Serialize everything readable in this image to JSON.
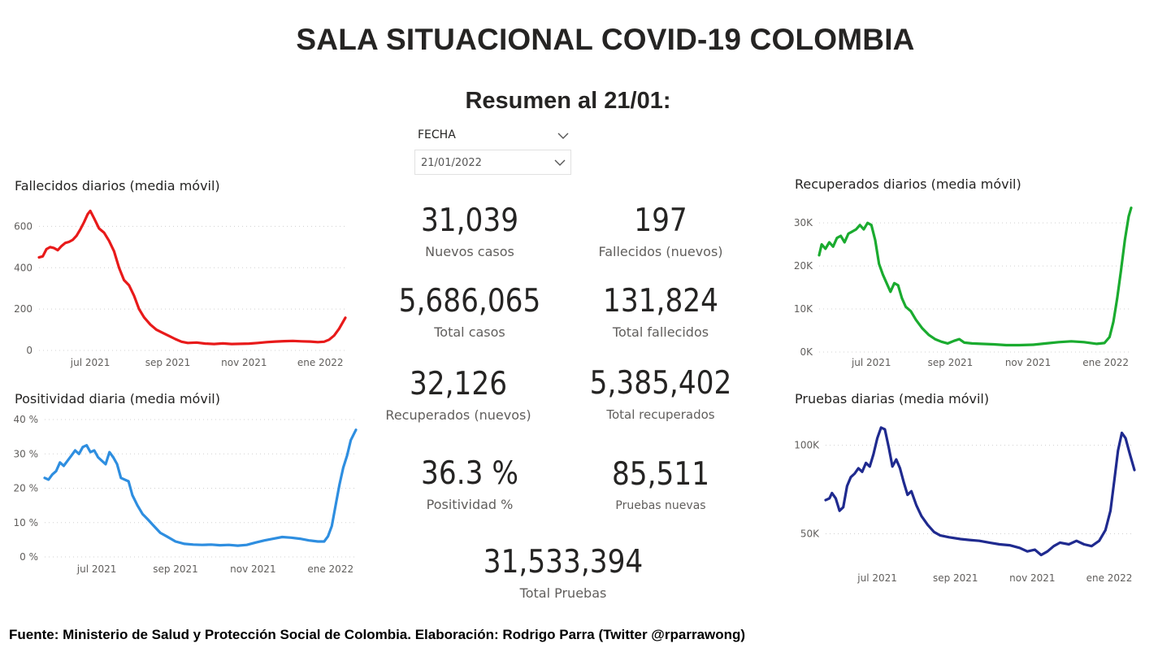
{
  "header": {
    "title": "SALA SITUACIONAL COVID-19 COLOMBIA",
    "subtitle": "Resumen al 21/01:"
  },
  "slicer": {
    "label": "FECHA",
    "value": "21/01/2022"
  },
  "kpis": {
    "nuevos_casos": {
      "value": "31,039",
      "label": "Nuevos casos"
    },
    "fallecidos_nuevos": {
      "value": "197",
      "label": "Fallecidos (nuevos)"
    },
    "total_casos": {
      "value": "5,686,065",
      "label": "Total casos"
    },
    "total_fallecidos": {
      "value": "131,824",
      "label": "Total fallecidos"
    },
    "recuperados_nuevos": {
      "value": "32,126",
      "label": "Recuperados (nuevos)"
    },
    "total_recuperados": {
      "value": "5,385,402",
      "label": "Total recuperados"
    },
    "positividad": {
      "value": "36.3 %",
      "label": "Positividad %"
    },
    "pruebas_nuevas": {
      "value": "85,511",
      "label": "Pruebas nuevas"
    },
    "total_pruebas": {
      "value": "31,533,394",
      "label": "Total Pruebas"
    }
  },
  "footer": "Fuente: Ministerio de Salud y Protección Social de Colombia. Elaboración: Rodrigo Parra (Twitter @rparrawong)",
  "colors": {
    "fallecidos": "#e81a1a",
    "positividad": "#2e8ee0",
    "recuperados": "#1aab2f",
    "pruebas": "#1f2a8f",
    "grid": "#d0d0d0",
    "axis_text": "#605e5c"
  },
  "chart_data": [
    {
      "id": "fallecidos",
      "type": "line",
      "title": "Fallecidos diarios (media móvil)",
      "x_range": [
        "2021-05-21",
        "2022-01-21"
      ],
      "x_ticks": [
        {
          "label": "jul 2021",
          "date": "2021-07-01"
        },
        {
          "label": "sep 2021",
          "date": "2021-09-01"
        },
        {
          "label": "nov 2021",
          "date": "2021-11-01"
        },
        {
          "label": "ene 2022",
          "date": "2022-01-01"
        }
      ],
      "y_ticks": [
        {
          "value": 0,
          "label": "0"
        },
        {
          "value": 200,
          "label": "200"
        },
        {
          "value": 400,
          "label": "400"
        },
        {
          "value": 600,
          "label": "600"
        }
      ],
      "ylim": [
        0,
        700
      ],
      "grid": true,
      "color": "#e81a1a",
      "points": [
        [
          "2021-05-21",
          450
        ],
        [
          "2021-05-24",
          455
        ],
        [
          "2021-05-27",
          490
        ],
        [
          "2021-05-30",
          500
        ],
        [
          "2021-06-02",
          495
        ],
        [
          "2021-06-05",
          485
        ],
        [
          "2021-06-08",
          505
        ],
        [
          "2021-06-11",
          520
        ],
        [
          "2021-06-14",
          525
        ],
        [
          "2021-06-17",
          535
        ],
        [
          "2021-06-20",
          555
        ],
        [
          "2021-06-23",
          585
        ],
        [
          "2021-06-26",
          620
        ],
        [
          "2021-06-29",
          660
        ],
        [
          "2021-07-01",
          675
        ],
        [
          "2021-07-04",
          640
        ],
        [
          "2021-07-08",
          590
        ],
        [
          "2021-07-12",
          570
        ],
        [
          "2021-07-16",
          530
        ],
        [
          "2021-07-20",
          480
        ],
        [
          "2021-07-24",
          400
        ],
        [
          "2021-07-28",
          340
        ],
        [
          "2021-08-01",
          315
        ],
        [
          "2021-08-05",
          265
        ],
        [
          "2021-08-09",
          200
        ],
        [
          "2021-08-13",
          160
        ],
        [
          "2021-08-18",
          125
        ],
        [
          "2021-08-23",
          100
        ],
        [
          "2021-08-28",
          85
        ],
        [
          "2021-09-02",
          70
        ],
        [
          "2021-09-07",
          55
        ],
        [
          "2021-09-12",
          42
        ],
        [
          "2021-09-17",
          36
        ],
        [
          "2021-09-24",
          38
        ],
        [
          "2021-10-01",
          33
        ],
        [
          "2021-10-08",
          31
        ],
        [
          "2021-10-15",
          34
        ],
        [
          "2021-10-22",
          31
        ],
        [
          "2021-10-29",
          32
        ],
        [
          "2021-11-05",
          33
        ],
        [
          "2021-11-12",
          36
        ],
        [
          "2021-11-19",
          40
        ],
        [
          "2021-11-26",
          43
        ],
        [
          "2021-12-03",
          45
        ],
        [
          "2021-12-10",
          46
        ],
        [
          "2021-12-17",
          44
        ],
        [
          "2021-12-24",
          43
        ],
        [
          "2021-12-30",
          40
        ],
        [
          "2022-01-04",
          42
        ],
        [
          "2022-01-08",
          52
        ],
        [
          "2022-01-12",
          72
        ],
        [
          "2022-01-16",
          105
        ],
        [
          "2022-01-21",
          158
        ]
      ]
    },
    {
      "id": "positividad",
      "type": "line",
      "title": "Positividad diaria (media móvil)",
      "x_range": [
        "2021-05-21",
        "2022-01-21"
      ],
      "x_ticks": [
        {
          "label": "jul 2021",
          "date": "2021-07-01"
        },
        {
          "label": "sep 2021",
          "date": "2021-09-01"
        },
        {
          "label": "nov 2021",
          "date": "2021-11-01"
        },
        {
          "label": "ene 2022",
          "date": "2022-01-01"
        }
      ],
      "y_ticks": [
        {
          "value": 0,
          "label": "0 %"
        },
        {
          "value": 10,
          "label": "10 %"
        },
        {
          "value": 20,
          "label": "20 %"
        },
        {
          "value": 30,
          "label": "30 %"
        },
        {
          "value": 40,
          "label": "40 %"
        }
      ],
      "ylim": [
        0,
        40
      ],
      "grid": true,
      "color": "#2e8ee0",
      "points": [
        [
          "2021-05-21",
          23
        ],
        [
          "2021-05-24",
          22.5
        ],
        [
          "2021-05-27",
          24
        ],
        [
          "2021-05-30",
          25
        ],
        [
          "2021-06-02",
          27.5
        ],
        [
          "2021-06-05",
          26.5
        ],
        [
          "2021-06-08",
          28
        ],
        [
          "2021-06-11",
          29.5
        ],
        [
          "2021-06-14",
          31
        ],
        [
          "2021-06-17",
          30
        ],
        [
          "2021-06-20",
          32
        ],
        [
          "2021-06-23",
          32.5
        ],
        [
          "2021-06-26",
          30.5
        ],
        [
          "2021-06-29",
          31
        ],
        [
          "2021-07-02",
          29
        ],
        [
          "2021-07-05",
          28
        ],
        [
          "2021-07-08",
          27
        ],
        [
          "2021-07-11",
          30.5
        ],
        [
          "2021-07-14",
          29
        ],
        [
          "2021-07-17",
          27
        ],
        [
          "2021-07-20",
          23
        ],
        [
          "2021-07-23",
          22.5
        ],
        [
          "2021-07-26",
          22
        ],
        [
          "2021-07-29",
          18
        ],
        [
          "2021-08-02",
          15
        ],
        [
          "2021-08-06",
          12.5
        ],
        [
          "2021-08-10",
          11
        ],
        [
          "2021-08-15",
          9
        ],
        [
          "2021-08-20",
          7
        ],
        [
          "2021-08-25",
          6
        ],
        [
          "2021-09-01",
          4.5
        ],
        [
          "2021-09-08",
          3.8
        ],
        [
          "2021-09-15",
          3.6
        ],
        [
          "2021-09-22",
          3.5
        ],
        [
          "2021-09-29",
          3.6
        ],
        [
          "2021-10-06",
          3.4
        ],
        [
          "2021-10-13",
          3.5
        ],
        [
          "2021-10-20",
          3.3
        ],
        [
          "2021-10-27",
          3.5
        ],
        [
          "2021-11-03",
          4.2
        ],
        [
          "2021-11-10",
          4.8
        ],
        [
          "2021-11-17",
          5.3
        ],
        [
          "2021-11-24",
          5.8
        ],
        [
          "2021-12-01",
          5.6
        ],
        [
          "2021-12-08",
          5.3
        ],
        [
          "2021-12-15",
          4.8
        ],
        [
          "2021-12-22",
          4.5
        ],
        [
          "2021-12-27",
          4.5
        ],
        [
          "2021-12-30",
          6
        ],
        [
          "2022-01-02",
          9
        ],
        [
          "2022-01-05",
          15
        ],
        [
          "2022-01-08",
          21
        ],
        [
          "2022-01-11",
          26
        ],
        [
          "2022-01-14",
          29.5
        ],
        [
          "2022-01-17",
          34
        ],
        [
          "2022-01-21",
          37
        ]
      ]
    },
    {
      "id": "recuperados",
      "type": "line",
      "title": "Recuperados diarios (media móvil)",
      "x_range": [
        "2021-05-21",
        "2022-01-21"
      ],
      "x_ticks": [
        {
          "label": "jul 2021",
          "date": "2021-07-01"
        },
        {
          "label": "sep 2021",
          "date": "2021-09-01"
        },
        {
          "label": "nov 2021",
          "date": "2021-11-01"
        },
        {
          "label": "ene 2022",
          "date": "2022-01-01"
        }
      ],
      "y_ticks": [
        {
          "value": 0,
          "label": "0K"
        },
        {
          "value": 10000,
          "label": "10K"
        },
        {
          "value": 20000,
          "label": "20K"
        },
        {
          "value": 30000,
          "label": "30K"
        }
      ],
      "ylim": [
        0,
        34000
      ],
      "grid": true,
      "color": "#1aab2f",
      "points": [
        [
          "2021-05-21",
          22500
        ],
        [
          "2021-05-23",
          25000
        ],
        [
          "2021-05-26",
          24000
        ],
        [
          "2021-05-29",
          25500
        ],
        [
          "2021-06-01",
          24500
        ],
        [
          "2021-06-04",
          26500
        ],
        [
          "2021-06-07",
          27000
        ],
        [
          "2021-06-10",
          25500
        ],
        [
          "2021-06-13",
          27500
        ],
        [
          "2021-06-16",
          28000
        ],
        [
          "2021-06-19",
          28500
        ],
        [
          "2021-06-22",
          29500
        ],
        [
          "2021-06-25",
          28500
        ],
        [
          "2021-06-28",
          30000
        ],
        [
          "2021-07-01",
          29500
        ],
        [
          "2021-07-04",
          26000
        ],
        [
          "2021-07-07",
          20500
        ],
        [
          "2021-07-10",
          18000
        ],
        [
          "2021-07-13",
          16000
        ],
        [
          "2021-07-16",
          14000
        ],
        [
          "2021-07-19",
          16000
        ],
        [
          "2021-07-22",
          15500
        ],
        [
          "2021-07-25",
          12500
        ],
        [
          "2021-07-28",
          10500
        ],
        [
          "2021-08-01",
          9500
        ],
        [
          "2021-08-05",
          7500
        ],
        [
          "2021-08-10",
          5500
        ],
        [
          "2021-08-15",
          4000
        ],
        [
          "2021-08-20",
          3000
        ],
        [
          "2021-08-25",
          2400
        ],
        [
          "2021-08-30",
          2000
        ],
        [
          "2021-09-04",
          2600
        ],
        [
          "2021-09-08",
          3000
        ],
        [
          "2021-09-12",
          2200
        ],
        [
          "2021-09-18",
          2000
        ],
        [
          "2021-09-25",
          1900
        ],
        [
          "2021-10-05",
          1800
        ],
        [
          "2021-10-15",
          1600
        ],
        [
          "2021-10-25",
          1600
        ],
        [
          "2021-11-05",
          1700
        ],
        [
          "2021-11-15",
          2000
        ],
        [
          "2021-11-25",
          2300
        ],
        [
          "2021-12-05",
          2500
        ],
        [
          "2021-12-15",
          2300
        ],
        [
          "2021-12-25",
          1900
        ],
        [
          "2021-12-31",
          2100
        ],
        [
          "2022-01-04",
          3500
        ],
        [
          "2022-01-07",
          7000
        ],
        [
          "2022-01-10",
          12500
        ],
        [
          "2022-01-13",
          19000
        ],
        [
          "2022-01-16",
          26000
        ],
        [
          "2022-01-19",
          31500
        ],
        [
          "2022-01-21",
          33500
        ]
      ]
    },
    {
      "id": "pruebas",
      "type": "line",
      "title": "Pruebas diarias (media móvil)",
      "x_range": [
        "2021-05-21",
        "2022-01-21"
      ],
      "x_ticks": [
        {
          "label": "jul 2021",
          "date": "2021-07-01"
        },
        {
          "label": "sep 2021",
          "date": "2021-09-01"
        },
        {
          "label": "nov 2021",
          "date": "2021-11-01"
        },
        {
          "label": "ene 2022",
          "date": "2022-01-01"
        }
      ],
      "y_ticks": [
        {
          "value": 50000,
          "label": "50K"
        },
        {
          "value": 100000,
          "label": "100K"
        }
      ],
      "ylim": [
        30000,
        115000
      ],
      "grid": true,
      "color": "#1f2a8f",
      "points": [
        [
          "2021-05-21",
          69000
        ],
        [
          "2021-05-24",
          70000
        ],
        [
          "2021-05-26",
          73000
        ],
        [
          "2021-05-29",
          70000
        ],
        [
          "2021-06-01",
          63000
        ],
        [
          "2021-06-04",
          65000
        ],
        [
          "2021-06-07",
          77000
        ],
        [
          "2021-06-10",
          82000
        ],
        [
          "2021-06-13",
          84000
        ],
        [
          "2021-06-16",
          87000
        ],
        [
          "2021-06-19",
          85000
        ],
        [
          "2021-06-22",
          90000
        ],
        [
          "2021-06-25",
          88000
        ],
        [
          "2021-06-28",
          95000
        ],
        [
          "2021-07-01",
          104000
        ],
        [
          "2021-07-04",
          110000
        ],
        [
          "2021-07-07",
          109000
        ],
        [
          "2021-07-10",
          99000
        ],
        [
          "2021-07-13",
          88000
        ],
        [
          "2021-07-16",
          92000
        ],
        [
          "2021-07-19",
          87000
        ],
        [
          "2021-07-22",
          79000
        ],
        [
          "2021-07-25",
          72000
        ],
        [
          "2021-07-28",
          74000
        ],
        [
          "2021-08-01",
          66000
        ],
        [
          "2021-08-05",
          60000
        ],
        [
          "2021-08-10",
          55000
        ],
        [
          "2021-08-15",
          51000
        ],
        [
          "2021-08-20",
          49000
        ],
        [
          "2021-08-27",
          48000
        ],
        [
          "2021-09-05",
          47000
        ],
        [
          "2021-09-12",
          46500
        ],
        [
          "2021-09-20",
          46000
        ],
        [
          "2021-09-28",
          45000
        ],
        [
          "2021-10-06",
          44000
        ],
        [
          "2021-10-14",
          43500
        ],
        [
          "2021-10-22",
          42000
        ],
        [
          "2021-10-28",
          40000
        ],
        [
          "2021-11-03",
          41000
        ],
        [
          "2021-11-08",
          38000
        ],
        [
          "2021-11-13",
          40000
        ],
        [
          "2021-11-18",
          43000
        ],
        [
          "2021-11-23",
          45000
        ],
        [
          "2021-11-30",
          44000
        ],
        [
          "2021-12-06",
          46000
        ],
        [
          "2021-12-12",
          44000
        ],
        [
          "2021-12-18",
          43000
        ],
        [
          "2021-12-24",
          46000
        ],
        [
          "2021-12-29",
          52000
        ],
        [
          "2022-01-02",
          63000
        ],
        [
          "2022-01-05",
          80000
        ],
        [
          "2022-01-08",
          97000
        ],
        [
          "2022-01-11",
          107000
        ],
        [
          "2022-01-14",
          104000
        ],
        [
          "2022-01-17",
          96000
        ],
        [
          "2022-01-21",
          86000
        ]
      ]
    }
  ]
}
